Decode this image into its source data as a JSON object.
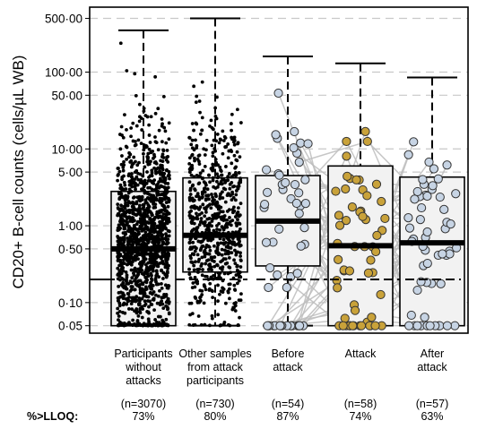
{
  "chart_data": {
    "type": "box",
    "ylabel": "CD20+ B-cell counts (cells/µL WB)",
    "yscale": "log",
    "ylim": [
      0.04,
      700
    ],
    "yticks": [
      {
        "v": 500,
        "label": "500·00"
      },
      {
        "v": 100,
        "label": "100·00"
      },
      {
        "v": 50,
        "label": "50·00"
      },
      {
        "v": 10,
        "label": "10·00"
      },
      {
        "v": 5,
        "label": "5·00"
      },
      {
        "v": 1,
        "label": "1·00"
      },
      {
        "v": 0.5,
        "label": "0·50"
      },
      {
        "v": 0.1,
        "label": "0·10"
      },
      {
        "v": 0.05,
        "label": "0·05"
      }
    ],
    "llq_line": 0.2,
    "grid": "horizontal-dashed",
    "colors": {
      "box_fill": "#f2f2f2",
      "before_after_point": "#c7d4e4",
      "attack_point": "#c9a23a",
      "pairing_line": "#bdbdbd",
      "grid": "#c8c8c8"
    },
    "groups": [
      {
        "label_lines": [
          "Participants",
          "without",
          "attacks"
        ],
        "n": "(n=3070)",
        "pct": "73%",
        "box": {
          "min": 0.05,
          "q1": 0.05,
          "median": 0.5,
          "q3": 2.8,
          "max": 350
        },
        "points": "dense",
        "point_count": 1400
      },
      {
        "label_lines": [
          "Other samples",
          "from attack",
          "participants"
        ],
        "n": "(n=730)",
        "pct": "80%",
        "box": {
          "min": 0.05,
          "q1": 0.25,
          "median": 0.75,
          "q3": 4.2,
          "max": 500
        },
        "points": "dense",
        "point_count": 700
      },
      {
        "label_lines": [
          "Before",
          "attack"
        ],
        "n": "(n=54)",
        "pct": "87%",
        "box": {
          "min": 0.05,
          "q1": 0.3,
          "median": 1.15,
          "q3": 4.5,
          "max": 160
        },
        "points": "circles",
        "point_count": 54
      },
      {
        "label_lines": [
          "Attack"
        ],
        "n": "(n=58)",
        "pct": "74%",
        "box": {
          "min": 0.05,
          "q1": 0.05,
          "median": 0.55,
          "q3": 6.0,
          "max": 130
        },
        "points": "circles",
        "point_count": 58
      },
      {
        "label_lines": [
          "After",
          "attack"
        ],
        "n": "(n=57)",
        "pct": "63%",
        "box": {
          "min": 0.05,
          "q1": 0.05,
          "median": 0.6,
          "q3": 4.3,
          "max": 85
        },
        "points": "circles",
        "point_count": 57
      }
    ],
    "footer_label": "%>LLOQ:"
  }
}
